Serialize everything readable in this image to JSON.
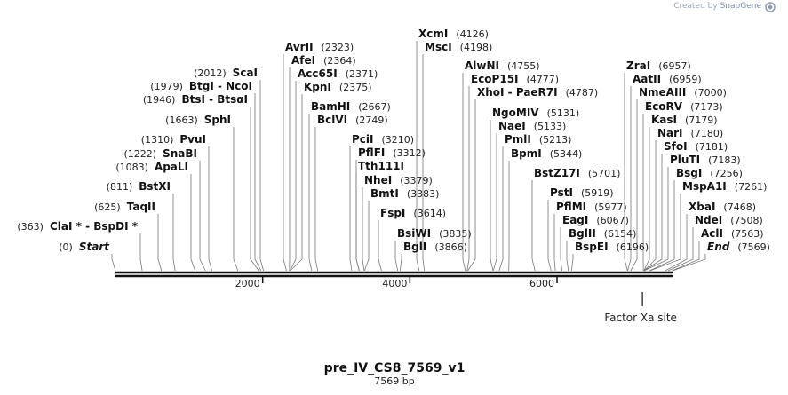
{
  "watermark": {
    "prefix": "Created by",
    "brand": "SnapGene"
  },
  "map": {
    "title": "pre_IV_CS8_7569_v1",
    "length_label": "7569 bp",
    "length": 7569,
    "ticks": [
      {
        "value": 2000,
        "label": "2000"
      },
      {
        "value": 4000,
        "label": "4000"
      },
      {
        "value": 6000,
        "label": "6000"
      }
    ],
    "feature": {
      "label": "Factor Xa site",
      "position": 7160
    }
  },
  "sites": [
    {
      "name": "Start",
      "pos": 0,
      "pos_label": "(0)",
      "italic": true,
      "label_pos": "right"
    },
    {
      "name": "ClaI * - BspDI *",
      "pos": 363,
      "pos_label": "(363)",
      "label_pos": "right"
    },
    {
      "name": "TaqII",
      "pos": 625,
      "pos_label": "(625)",
      "label_pos": "right"
    },
    {
      "name": "BstXI",
      "pos": 811,
      "pos_label": "(811)",
      "label_pos": "right"
    },
    {
      "name": "ApaLI",
      "pos": 1083,
      "pos_label": "(1083)",
      "label_pos": "right"
    },
    {
      "name": "SnaBI",
      "pos": 1222,
      "pos_label": "(1222)",
      "label_pos": "right"
    },
    {
      "name": "PvuI",
      "pos": 1310,
      "pos_label": "(1310)",
      "label_pos": "right"
    },
    {
      "name": "SphI",
      "pos": 1663,
      "pos_label": "(1663)",
      "label_pos": "right"
    },
    {
      "name": "BtsI - BtsαI",
      "pos": 1946,
      "pos_label": "(1946)",
      "label_pos": "right"
    },
    {
      "name": "BtgI - NcoI",
      "pos": 1979,
      "pos_label": "(1979)",
      "label_pos": "right"
    },
    {
      "name": "ScaI",
      "pos": 2012,
      "pos_label": "(2012)",
      "label_pos": "right"
    },
    {
      "name": "AvrII",
      "pos": 2323,
      "pos_label": "(2323)",
      "label_pos": "left"
    },
    {
      "name": "AfeI",
      "pos": 2364,
      "pos_label": "(2364)",
      "label_pos": "left"
    },
    {
      "name": "Acc65I",
      "pos": 2371,
      "pos_label": "(2371)",
      "label_pos": "left"
    },
    {
      "name": "KpnI",
      "pos": 2375,
      "pos_label": "(2375)",
      "label_pos": "left"
    },
    {
      "name": "BamHI",
      "pos": 2667,
      "pos_label": "(2667)",
      "label_pos": "left"
    },
    {
      "name": "BclVI",
      "pos": 2749,
      "pos_label": "(2749)",
      "label_pos": "left"
    },
    {
      "name": "PciI",
      "pos": 3210,
      "pos_label": "(3210)",
      "label_pos": "left"
    },
    {
      "name": "PflFI",
      "pos": 3312,
      "pos_label": "(3312)",
      "label_pos": "left"
    },
    {
      "name": "Tth111I",
      "pos": 3312,
      "pos_label": "",
      "label_pos": "left"
    },
    {
      "name": "NheI",
      "pos": 3379,
      "pos_label": "(3379)",
      "label_pos": "left"
    },
    {
      "name": "BmtI",
      "pos": 3383,
      "pos_label": "(3383)",
      "label_pos": "left"
    },
    {
      "name": "FspI",
      "pos": 3614,
      "pos_label": "(3614)",
      "label_pos": "left"
    },
    {
      "name": "BsiWI",
      "pos": 3835,
      "pos_label": "(3835)",
      "label_pos": "left"
    },
    {
      "name": "BglI",
      "pos": 3866,
      "pos_label": "(3866)",
      "label_pos": "left"
    },
    {
      "name": "XcmI",
      "pos": 4126,
      "pos_label": "(4126)",
      "label_pos": "left"
    },
    {
      "name": "MscI",
      "pos": 4198,
      "pos_label": "(4198)",
      "label_pos": "left"
    },
    {
      "name": "AlwNI",
      "pos": 4755,
      "pos_label": "(4755)",
      "label_pos": "left"
    },
    {
      "name": "EcoP15I",
      "pos": 4777,
      "pos_label": "(4777)",
      "label_pos": "left"
    },
    {
      "name": "XhoI - PaeR7I",
      "pos": 4787,
      "pos_label": "(4787)",
      "label_pos": "left"
    },
    {
      "name": "NgoMIV",
      "pos": 5131,
      "pos_label": "(5131)",
      "label_pos": "left"
    },
    {
      "name": "NaeI",
      "pos": 5133,
      "pos_label": "(5133)",
      "label_pos": "left"
    },
    {
      "name": "PmlI",
      "pos": 5213,
      "pos_label": "(5213)",
      "label_pos": "left"
    },
    {
      "name": "BpmI",
      "pos": 5344,
      "pos_label": "(5344)",
      "label_pos": "left"
    },
    {
      "name": "BstZ17I",
      "pos": 5701,
      "pos_label": "(5701)",
      "label_pos": "left"
    },
    {
      "name": "PstI",
      "pos": 5919,
      "pos_label": "(5919)",
      "label_pos": "left"
    },
    {
      "name": "PflMI",
      "pos": 5977,
      "pos_label": "(5977)",
      "label_pos": "left"
    },
    {
      "name": "EagI",
      "pos": 6067,
      "pos_label": "(6067)",
      "label_pos": "left"
    },
    {
      "name": "BglII",
      "pos": 6154,
      "pos_label": "(6154)",
      "label_pos": "left"
    },
    {
      "name": "BspEI",
      "pos": 6196,
      "pos_label": "(6196)",
      "label_pos": "left"
    },
    {
      "name": "ZraI",
      "pos": 6957,
      "pos_label": "(6957)",
      "label_pos": "left"
    },
    {
      "name": "AatII",
      "pos": 6959,
      "pos_label": "(6959)",
      "label_pos": "left"
    },
    {
      "name": "NmeAIII",
      "pos": 7000,
      "pos_label": "(7000)",
      "label_pos": "left"
    },
    {
      "name": "EcoRV",
      "pos": 7173,
      "pos_label": "(7173)",
      "label_pos": "left"
    },
    {
      "name": "KasI",
      "pos": 7179,
      "pos_label": "(7179)",
      "label_pos": "left"
    },
    {
      "name": "NarI",
      "pos": 7180,
      "pos_label": "(7180)",
      "label_pos": "left"
    },
    {
      "name": "SfoI",
      "pos": 7181,
      "pos_label": "(7181)",
      "label_pos": "left"
    },
    {
      "name": "PluTI",
      "pos": 7183,
      "pos_label": "(7183)",
      "label_pos": "left"
    },
    {
      "name": "BsgI",
      "pos": 7256,
      "pos_label": "(7256)",
      "label_pos": "left"
    },
    {
      "name": "MspA1I",
      "pos": 7261,
      "pos_label": "(7261)",
      "label_pos": "left"
    },
    {
      "name": "XbaI",
      "pos": 7468,
      "pos_label": "(7468)",
      "label_pos": "left"
    },
    {
      "name": "NdeI",
      "pos": 7508,
      "pos_label": "(7508)",
      "label_pos": "left"
    },
    {
      "name": "AclI",
      "pos": 7563,
      "pos_label": "(7563)",
      "label_pos": "left"
    },
    {
      "name": "End",
      "pos": 7569,
      "pos_label": "(7569)",
      "italic": true,
      "label_pos": "left"
    }
  ]
}
